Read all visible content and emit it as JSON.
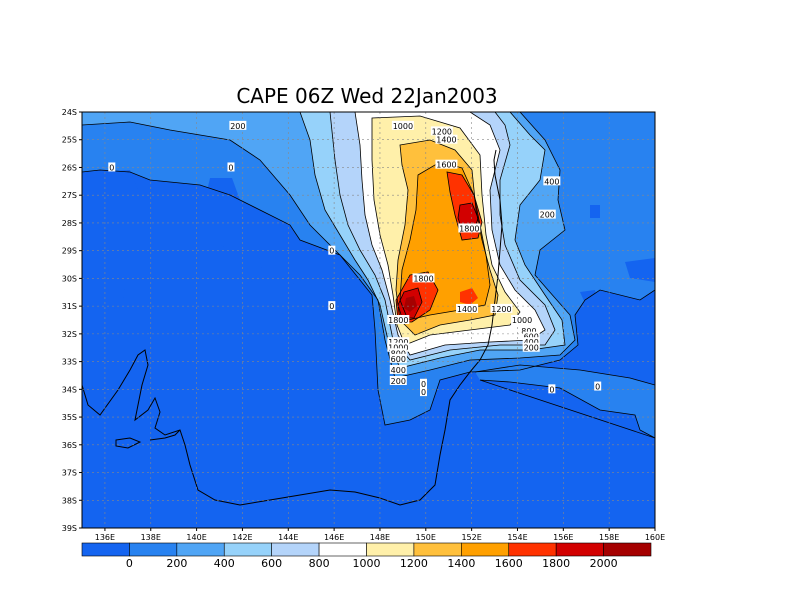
{
  "chart_data": {
    "type": "heatmap",
    "title": "CAPE 06Z Wed 22Jan2003",
    "x_ticks": [
      "136E",
      "138E",
      "140E",
      "142E",
      "144E",
      "146E",
      "148E",
      "150E",
      "152E",
      "154E",
      "156E",
      "158E",
      "160E"
    ],
    "y_ticks": [
      "24S",
      "25S",
      "26S",
      "27S",
      "28S",
      "29S",
      "30S",
      "31S",
      "32S",
      "33S",
      "34S",
      "35S",
      "36S",
      "37S",
      "38S",
      "39S"
    ],
    "xlim": [
      135,
      160
    ],
    "ylim": [
      -39,
      -24
    ],
    "grid": true,
    "colorbar": {
      "labels": [
        "0",
        "200",
        "400",
        "600",
        "800",
        "1000",
        "1200",
        "1400",
        "1600",
        "1800",
        "2000"
      ],
      "colors": [
        "#1464f0",
        "#2882f0",
        "#50a5f5",
        "#96d2fa",
        "#b4d4fa",
        "#ffffff",
        "#fff0aa",
        "#ffc03c",
        "#ffa000",
        "#ff3200",
        "#d20000",
        "#a50000"
      ]
    },
    "contour_labels": [
      {
        "text": "1000",
        "lon": 149.0,
        "lat": -24.5
      },
      {
        "text": "200",
        "lon": 141.8,
        "lat": -24.5
      },
      {
        "text": "1200",
        "lon": 150.7,
        "lat": -24.7
      },
      {
        "text": "1400",
        "lon": 150.9,
        "lat": -25.0
      },
      {
        "text": "0",
        "lon": 136.3,
        "lat": -26.0
      },
      {
        "text": "0",
        "lon": 141.5,
        "lat": -26.0
      },
      {
        "text": "1600",
        "lon": 150.9,
        "lat": -25.9
      },
      {
        "text": "400",
        "lon": 155.5,
        "lat": -26.5
      },
      {
        "text": "200",
        "lon": 155.3,
        "lat": -27.7
      },
      {
        "text": "1800",
        "lon": 151.9,
        "lat": -28.2
      },
      {
        "text": "0",
        "lon": 145.9,
        "lat": -29.0
      },
      {
        "text": "1800",
        "lon": 149.9,
        "lat": -30.0
      },
      {
        "text": "0",
        "lon": 145.9,
        "lat": -31.0
      },
      {
        "text": "1400",
        "lon": 151.8,
        "lat": -31.1
      },
      {
        "text": "1200",
        "lon": 153.3,
        "lat": -31.1
      },
      {
        "text": "1800",
        "lon": 148.8,
        "lat": -31.5
      },
      {
        "text": "1000",
        "lon": 154.2,
        "lat": -31.5
      },
      {
        "text": "800",
        "lon": 154.5,
        "lat": -31.9
      },
      {
        "text": "600",
        "lon": 154.6,
        "lat": -32.1
      },
      {
        "text": "400",
        "lon": 154.6,
        "lat": -32.3
      },
      {
        "text": "200",
        "lon": 154.6,
        "lat": -32.5
      },
      {
        "text": "1200",
        "lon": 148.8,
        "lat": -32.3
      },
      {
        "text": "1000",
        "lon": 148.8,
        "lat": -32.5
      },
      {
        "text": "800",
        "lon": 148.8,
        "lat": -32.7
      },
      {
        "text": "600",
        "lon": 148.8,
        "lat": -32.9
      },
      {
        "text": "400",
        "lon": 148.8,
        "lat": -33.3
      },
      {
        "text": "200",
        "lon": 148.8,
        "lat": -33.7
      },
      {
        "text": "0",
        "lon": 149.9,
        "lat": -33.8
      },
      {
        "text": "0",
        "lon": 149.9,
        "lat": -34.1
      },
      {
        "text": "0",
        "lon": 155.5,
        "lat": -34.0
      },
      {
        "text": "0",
        "lon": 157.5,
        "lat": -33.9
      }
    ]
  }
}
